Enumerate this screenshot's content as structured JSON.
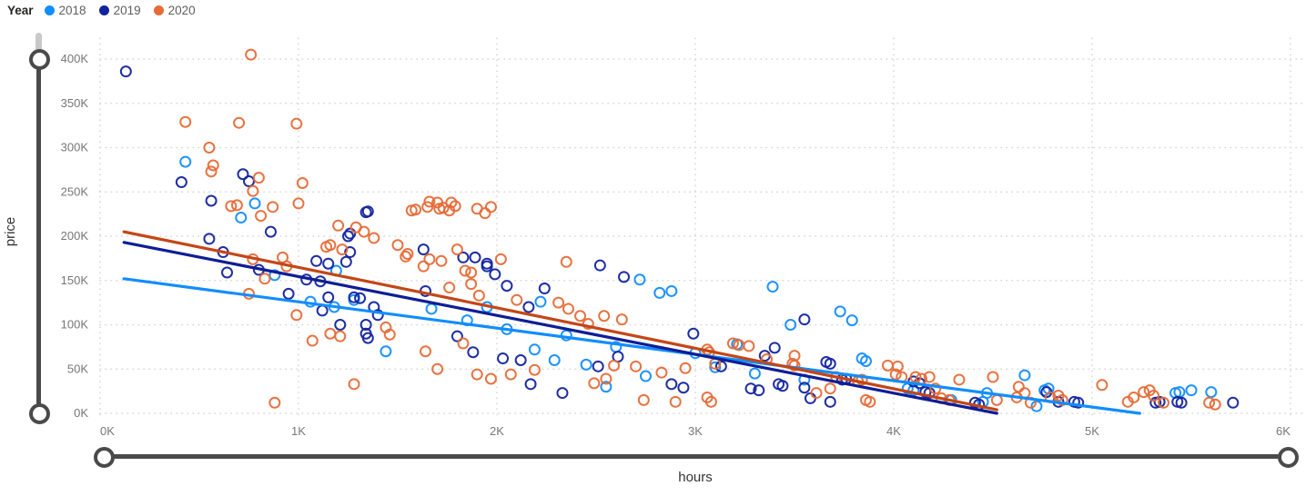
{
  "legend": {
    "title": "Year",
    "items": [
      {
        "label": "2018",
        "color": "#118DFF"
      },
      {
        "label": "2019",
        "color": "#12239E"
      },
      {
        "label": "2020",
        "color": "#E66C37"
      }
    ]
  },
  "colors": {
    "gridline": "#D6D6D6",
    "tick_label": "#777777",
    "axis_title": "#333333",
    "slider": "#4a4a4a"
  },
  "chart_data": {
    "type": "scatter",
    "title": "",
    "xlabel": "hours",
    "ylabel": "price",
    "grid": "dotted",
    "legend_position": "top-left",
    "units": {
      "x": "K hours",
      "y": "K price"
    },
    "x_axis": {
      "min": 0,
      "max": 6,
      "tick_step": 1,
      "tick_labels": [
        "0K",
        "1K",
        "2K",
        "3K",
        "4K",
        "5K",
        "6K"
      ]
    },
    "y_axis": {
      "min": 0,
      "max": 400,
      "tick_step": 50,
      "tick_labels": [
        "0K",
        "50K",
        "100K",
        "150K",
        "200K",
        "250K",
        "300K",
        "350K",
        "400K"
      ]
    },
    "series": [
      {
        "name": "2018",
        "color": "#118DFF",
        "points": [
          [
            0.43,
            284
          ],
          [
            0.78,
            237
          ],
          [
            0.71,
            221
          ],
          [
            0.88,
            156
          ],
          [
            1.06,
            126
          ],
          [
            1.18,
            120
          ],
          [
            1.19,
            161
          ],
          [
            1.28,
            128
          ],
          [
            1.44,
            70
          ],
          [
            1.67,
            118
          ],
          [
            1.85,
            105
          ],
          [
            1.95,
            120
          ],
          [
            2.05,
            95
          ],
          [
            2.19,
            72
          ],
          [
            2.22,
            126
          ],
          [
            2.29,
            60
          ],
          [
            2.35,
            88
          ],
          [
            2.45,
            55
          ],
          [
            2.55,
            30
          ],
          [
            2.6,
            75
          ],
          [
            2.72,
            151
          ],
          [
            2.75,
            42
          ],
          [
            2.82,
            136
          ],
          [
            2.88,
            138
          ],
          [
            3.0,
            68
          ],
          [
            3.1,
            52
          ],
          [
            3.21,
            78
          ],
          [
            3.3,
            45
          ],
          [
            3.39,
            143
          ],
          [
            3.48,
            100
          ],
          [
            3.55,
            38
          ],
          [
            3.73,
            115
          ],
          [
            3.79,
            105
          ],
          [
            3.84,
            62
          ],
          [
            3.86,
            59
          ],
          [
            4.07,
            28
          ],
          [
            4.1,
            26
          ],
          [
            4.29,
            15
          ],
          [
            4.45,
            13
          ],
          [
            4.47,
            23
          ],
          [
            4.66,
            43
          ],
          [
            4.72,
            8
          ],
          [
            4.76,
            26
          ],
          [
            4.78,
            28
          ],
          [
            5.42,
            23
          ],
          [
            5.44,
            24
          ],
          [
            5.5,
            26
          ],
          [
            5.6,
            24
          ]
        ]
      },
      {
        "name": "2019",
        "color": "#12239E",
        "points": [
          [
            0.13,
            386
          ],
          [
            0.41,
            261
          ],
          [
            0.55,
            197
          ],
          [
            0.56,
            240
          ],
          [
            0.62,
            182
          ],
          [
            0.64,
            159
          ],
          [
            0.72,
            270
          ],
          [
            0.75,
            262
          ],
          [
            0.8,
            162
          ],
          [
            0.86,
            205
          ],
          [
            0.95,
            135
          ],
          [
            1.04,
            151
          ],
          [
            1.09,
            172
          ],
          [
            1.11,
            149
          ],
          [
            1.12,
            116
          ],
          [
            1.15,
            169
          ],
          [
            1.15,
            131
          ],
          [
            1.21,
            100
          ],
          [
            1.24,
            171
          ],
          [
            1.25,
            200
          ],
          [
            1.26,
            182
          ],
          [
            1.26,
            203
          ],
          [
            1.28,
            131
          ],
          [
            1.31,
            130
          ],
          [
            1.34,
            227
          ],
          [
            1.34,
            100
          ],
          [
            1.34,
            90
          ],
          [
            1.35,
            85
          ],
          [
            1.35,
            228
          ],
          [
            1.38,
            120
          ],
          [
            1.4,
            111
          ],
          [
            1.63,
            185
          ],
          [
            1.64,
            138
          ],
          [
            1.8,
            87
          ],
          [
            1.83,
            176
          ],
          [
            1.88,
            69
          ],
          [
            1.89,
            176
          ],
          [
            1.95,
            169
          ],
          [
            1.95,
            166
          ],
          [
            1.99,
            157
          ],
          [
            2.03,
            62
          ],
          [
            2.05,
            144
          ],
          [
            2.12,
            60
          ],
          [
            2.16,
            120
          ],
          [
            2.17,
            33
          ],
          [
            2.24,
            141
          ],
          [
            2.33,
            23
          ],
          [
            2.51,
            53
          ],
          [
            2.52,
            167
          ],
          [
            2.61,
            64
          ],
          [
            2.64,
            154
          ],
          [
            2.88,
            33
          ],
          [
            2.94,
            29
          ],
          [
            2.99,
            90
          ],
          [
            3.13,
            53
          ],
          [
            3.28,
            28
          ],
          [
            3.32,
            26
          ],
          [
            3.35,
            65
          ],
          [
            3.4,
            74
          ],
          [
            3.42,
            33
          ],
          [
            3.44,
            31
          ],
          [
            3.55,
            106
          ],
          [
            3.55,
            29
          ],
          [
            3.58,
            17
          ],
          [
            3.66,
            58
          ],
          [
            3.68,
            56
          ],
          [
            3.68,
            13
          ],
          [
            3.74,
            38
          ],
          [
            3.76,
            39
          ],
          [
            4.1,
            36
          ],
          [
            4.13,
            34
          ],
          [
            4.16,
            24
          ],
          [
            4.18,
            23
          ],
          [
            4.41,
            12
          ],
          [
            4.43,
            10
          ],
          [
            4.77,
            24
          ],
          [
            4.83,
            13
          ],
          [
            4.91,
            13
          ],
          [
            4.93,
            12
          ],
          [
            5.32,
            12
          ],
          [
            5.34,
            13
          ],
          [
            5.43,
            13
          ],
          [
            5.45,
            12
          ],
          [
            5.71,
            12
          ]
        ]
      },
      {
        "name": "2020",
        "color": "#E66C37",
        "points": [
          [
            0.76,
            405
          ],
          [
            0.43,
            329
          ],
          [
            0.7,
            328
          ],
          [
            0.99,
            327
          ],
          [
            0.55,
            300
          ],
          [
            0.57,
            280
          ],
          [
            0.56,
            273
          ],
          [
            0.8,
            266
          ],
          [
            1.02,
            260
          ],
          [
            0.77,
            251
          ],
          [
            0.66,
            234
          ],
          [
            0.69,
            235
          ],
          [
            0.81,
            223
          ],
          [
            0.87,
            233
          ],
          [
            1.0,
            237
          ],
          [
            1.2,
            212
          ],
          [
            1.29,
            210
          ],
          [
            1.33,
            205
          ],
          [
            1.38,
            198
          ],
          [
            1.16,
            190
          ],
          [
            1.22,
            185
          ],
          [
            0.77,
            174
          ],
          [
            0.92,
            176
          ],
          [
            0.94,
            166
          ],
          [
            0.83,
            152
          ],
          [
            0.75,
            135
          ],
          [
            0.99,
            111
          ],
          [
            1.07,
            82
          ],
          [
            1.16,
            90
          ],
          [
            1.21,
            87
          ],
          [
            1.44,
            97
          ],
          [
            1.46,
            89
          ],
          [
            1.28,
            33
          ],
          [
            0.88,
            12
          ],
          [
            1.14,
            188
          ],
          [
            1.5,
            190
          ],
          [
            1.54,
            177
          ],
          [
            1.55,
            180
          ],
          [
            1.57,
            229
          ],
          [
            1.65,
            233
          ],
          [
            1.71,
            231
          ],
          [
            1.76,
            229
          ],
          [
            1.79,
            234
          ],
          [
            1.9,
            231
          ],
          [
            1.94,
            226
          ],
          [
            1.97,
            233
          ],
          [
            1.59,
            230
          ],
          [
            1.66,
            239
          ],
          [
            1.7,
            238
          ],
          [
            1.73,
            232
          ],
          [
            1.77,
            238
          ],
          [
            1.63,
            166
          ],
          [
            1.66,
            174
          ],
          [
            1.72,
            172
          ],
          [
            1.8,
            185
          ],
          [
            1.84,
            161
          ],
          [
            1.87,
            159
          ],
          [
            2.02,
            174
          ],
          [
            2.35,
            171
          ],
          [
            1.76,
            142
          ],
          [
            1.87,
            146
          ],
          [
            1.91,
            133
          ],
          [
            2.1,
            128
          ],
          [
            2.31,
            125
          ],
          [
            2.36,
            118
          ],
          [
            2.42,
            110
          ],
          [
            2.46,
            101
          ],
          [
            2.54,
            110
          ],
          [
            2.63,
            106
          ],
          [
            1.64,
            70
          ],
          [
            1.7,
            50
          ],
          [
            1.83,
            79
          ],
          [
            1.9,
            44
          ],
          [
            1.97,
            39
          ],
          [
            2.07,
            44
          ],
          [
            2.19,
            49
          ],
          [
            2.49,
            34
          ],
          [
            2.55,
            39
          ],
          [
            2.59,
            54
          ],
          [
            2.7,
            53
          ],
          [
            2.74,
            15
          ],
          [
            2.83,
            46
          ],
          [
            2.9,
            13
          ],
          [
            2.95,
            51
          ],
          [
            3.06,
            72
          ],
          [
            3.06,
            18
          ],
          [
            3.07,
            69
          ],
          [
            3.08,
            13
          ],
          [
            3.1,
            56
          ],
          [
            3.19,
            79
          ],
          [
            3.22,
            77
          ],
          [
            3.27,
            76
          ],
          [
            3.36,
            61
          ],
          [
            3.49,
            56
          ],
          [
            3.5,
            54
          ],
          [
            3.5,
            65
          ],
          [
            3.61,
            23
          ],
          [
            3.68,
            28
          ],
          [
            3.71,
            41
          ],
          [
            3.82,
            36
          ],
          [
            3.84,
            38
          ],
          [
            3.86,
            15
          ],
          [
            3.88,
            13
          ],
          [
            3.97,
            54
          ],
          [
            4.02,
            53
          ],
          [
            4.01,
            44
          ],
          [
            4.04,
            41
          ],
          [
            4.11,
            41
          ],
          [
            4.14,
            39
          ],
          [
            4.18,
            41
          ],
          [
            4.21,
            28
          ],
          [
            4.24,
            17
          ],
          [
            4.28,
            15
          ],
          [
            4.33,
            38
          ],
          [
            4.5,
            41
          ],
          [
            4.52,
            15
          ],
          [
            4.62,
            18
          ],
          [
            4.63,
            30
          ],
          [
            4.66,
            23
          ],
          [
            4.69,
            12
          ],
          [
            4.79,
            18
          ],
          [
            4.83,
            20
          ],
          [
            4.85,
            15
          ],
          [
            5.05,
            32
          ],
          [
            5.18,
            13
          ],
          [
            5.21,
            18
          ],
          [
            5.26,
            24
          ],
          [
            5.29,
            26
          ],
          [
            5.31,
            20
          ],
          [
            5.36,
            12
          ],
          [
            5.59,
            12
          ],
          [
            5.62,
            10
          ]
        ]
      }
    ],
    "trendlines": [
      {
        "name": "2018",
        "color": "#118DFF",
        "from": [
          0.12,
          152
        ],
        "to": [
          5.24,
          0
        ]
      },
      {
        "name": "2019",
        "color": "#0E1E96",
        "from": [
          0.12,
          193
        ],
        "to": [
          4.52,
          0
        ]
      },
      {
        "name": "2020",
        "color": "#C44617",
        "from": [
          0.12,
          205
        ],
        "to": [
          4.52,
          4
        ]
      }
    ]
  }
}
